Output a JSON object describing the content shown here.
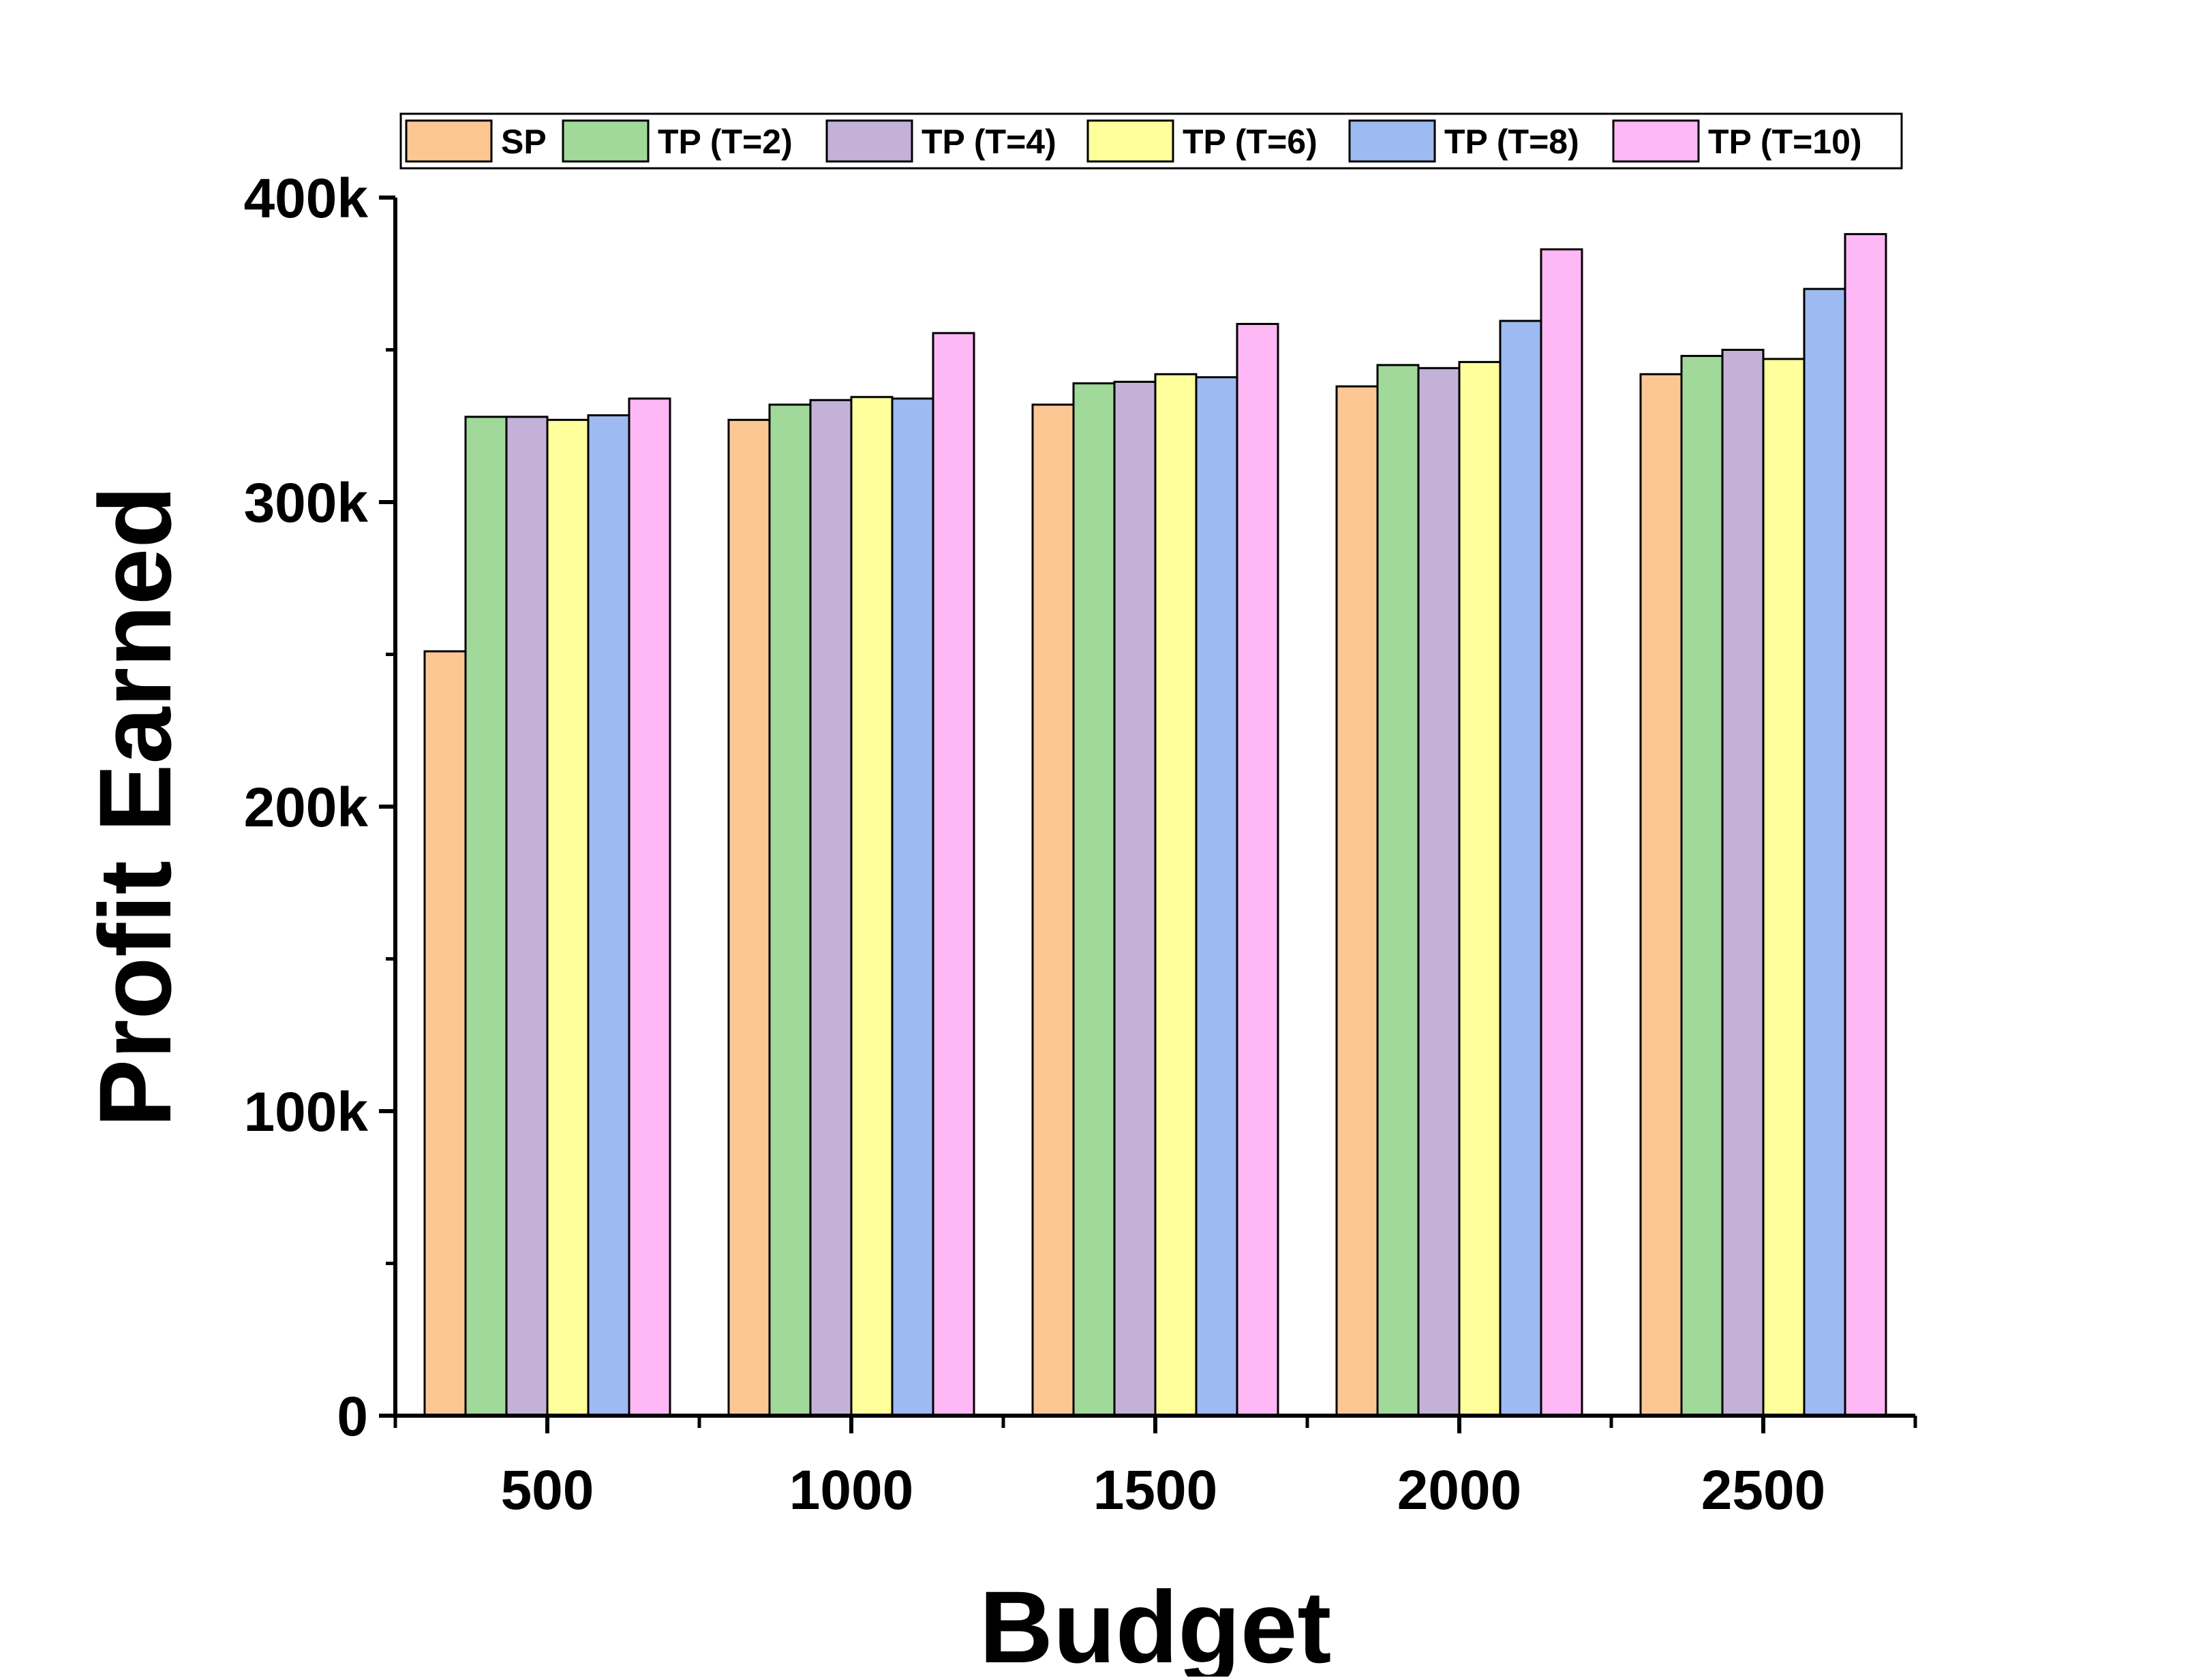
{
  "chart_data": {
    "type": "bar",
    "xlabel": "Budget",
    "ylabel": "Profit Earned",
    "categories": [
      "500",
      "1000",
      "1500",
      "2000",
      "2500"
    ],
    "ylim": [
      0,
      400000
    ],
    "yticks": [
      {
        "value": 0,
        "label": "0"
      },
      {
        "value": 100000,
        "label": "100k"
      },
      {
        "value": 200000,
        "label": "200k"
      },
      {
        "value": 300000,
        "label": "300k"
      },
      {
        "value": 400000,
        "label": "400k"
      }
    ],
    "minor_ytick_step": 50000,
    "grid": false,
    "legend_position": "top",
    "series": [
      {
        "name": "SP",
        "color": "#fdc793",
        "values": [
          251000,
          327000,
          332000,
          338000,
          342000
        ]
      },
      {
        "name": "TP (T=2)",
        "color": "#a1d99b",
        "values": [
          328000,
          332000,
          339000,
          345000,
          348000
        ]
      },
      {
        "name": "TP (T=4)",
        "color": "#c3b1d7",
        "values": [
          328000,
          333500,
          339500,
          344000,
          350000
        ]
      },
      {
        "name": "TP (T=6)",
        "color": "#ffff9c",
        "values": [
          327000,
          334500,
          342000,
          346000,
          347000
        ]
      },
      {
        "name": "TP (T=8)",
        "color": "#9dbbf1",
        "values": [
          328500,
          334000,
          341000,
          359500,
          370000
        ]
      },
      {
        "name": "TP (T=10)",
        "color": "#feb8f6",
        "values": [
          334000,
          355500,
          358500,
          383000,
          388000
        ]
      }
    ]
  }
}
